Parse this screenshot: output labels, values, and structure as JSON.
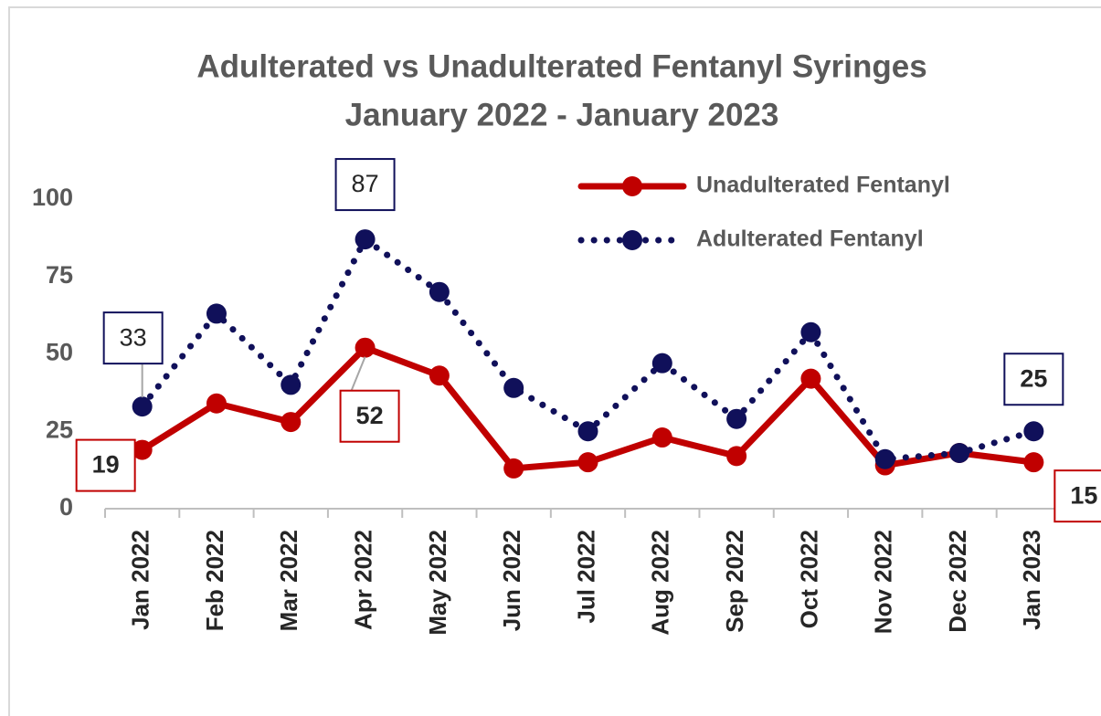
{
  "chart_data": {
    "type": "line",
    "title": "Adulterated vs Unadulterated Fentanyl Syringes",
    "subtitle": "January 2022 - January 2023",
    "categories": [
      "Jan 2022",
      "Feb 2022",
      "Mar 2022",
      "Apr 2022",
      "May 2022",
      "Jun 2022",
      "Jul 2022",
      "Aug 2022",
      "Sep 2022",
      "Oct 2022",
      "Nov 2022",
      "Dec 2022",
      "Jan 2023"
    ],
    "series": [
      {
        "name": "Unadulterated Fentanyl",
        "color": "#c00000",
        "line_style": "solid",
        "values": [
          19,
          34,
          28,
          52,
          43,
          13,
          15,
          23,
          17,
          42,
          14,
          18,
          15
        ],
        "value_labels": [
          "19",
          null,
          null,
          "52",
          null,
          null,
          null,
          null,
          null,
          null,
          null,
          null,
          "15"
        ]
      },
      {
        "name": "Adulterated Fentanyl",
        "color": "#10105a",
        "line_style": "dotted",
        "values": [
          33,
          63,
          40,
          87,
          70,
          39,
          25,
          47,
          29,
          57,
          16,
          18,
          25
        ],
        "value_labels": [
          "33",
          null,
          null,
          "87",
          null,
          null,
          null,
          null,
          null,
          null,
          null,
          null,
          "25"
        ]
      }
    ],
    "ylim": [
      0,
      100
    ],
    "yticks": [
      0,
      25,
      50,
      75,
      100
    ],
    "grid": false,
    "legend": "top-right"
  }
}
